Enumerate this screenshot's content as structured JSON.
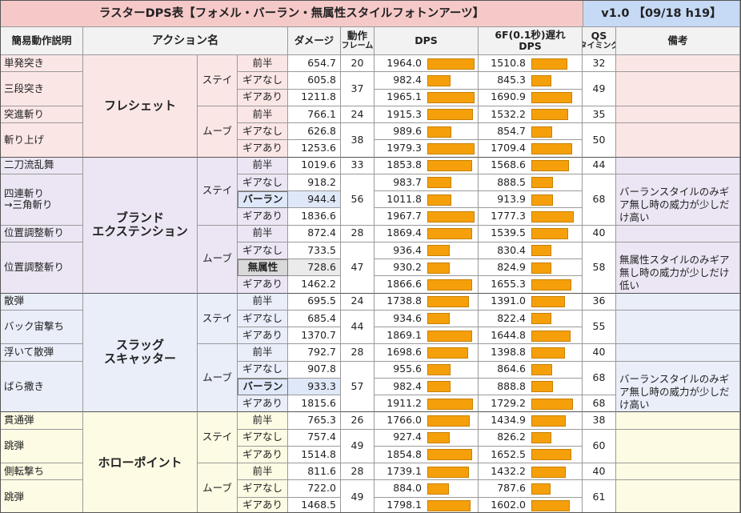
{
  "title": "ラスターDPS表【フォメル・バーラン・無属性スタイルフォトンアーツ】",
  "version": "v1.0 【09/18 h19】",
  "headers": {
    "simple": "簡易動作説明",
    "action": "アクション名",
    "damage": "ダメージ",
    "frames_line1": "動作",
    "frames_line2": "フレーム",
    "dps": "DPS",
    "dps6f_line1": "6F(0.1秒)遅れ",
    "dps6f_line2": "DPS",
    "qs_line1": "QS",
    "qs_line2": "タイミング",
    "notes": "備考"
  },
  "colors": {
    "fleche": "#fbe6e6",
    "brand": "#ece6f4",
    "slug": "#e9eef9",
    "hollow": "#fdfbe4",
    "bar": "#f5a00a"
  },
  "styles": {
    "stay": "ステイ",
    "move": "ムーブ"
  },
  "groups": [
    {
      "name_line1": "フレシェット",
      "name_line2": "",
      "rows": [
        {
          "desc": "単発突き",
          "style": "stay",
          "sub": "前半",
          "damage": "654.7",
          "frames": "20",
          "dps": 1964.0,
          "dps_text": "1964.0",
          "dps6": 1510.8,
          "dps6_text": "1510.8",
          "qs": "32"
        },
        {
          "desc": "三段突き",
          "sub": "ギアなし",
          "damage": "605.8",
          "frames": "37",
          "dps": 982.4,
          "dps_text": "982.4",
          "dps6": 845.3,
          "dps6_text": "845.3",
          "qs": "49"
        },
        {
          "sub": "ギアあり",
          "damage": "1211.8",
          "dps": 1965.1,
          "dps_text": "1965.1",
          "dps6": 1690.9,
          "dps6_text": "1690.9"
        },
        {
          "desc": "突進斬り",
          "style": "move",
          "sub": "前半",
          "damage": "766.1",
          "frames": "24",
          "dps": 1915.3,
          "dps_text": "1915.3",
          "dps6": 1532.2,
          "dps6_text": "1532.2",
          "qs": "35"
        },
        {
          "desc": "斬り上げ",
          "sub": "ギアなし",
          "damage": "626.8",
          "frames": "38",
          "dps": 989.6,
          "dps_text": "989.6",
          "dps6": 854.7,
          "dps6_text": "854.7",
          "qs": "50"
        },
        {
          "sub": "ギアあり",
          "damage": "1253.6",
          "dps": 1979.3,
          "dps_text": "1979.3",
          "dps6": 1709.4,
          "dps6_text": "1709.4"
        }
      ]
    },
    {
      "name_line1": "ブランド",
      "name_line2": "エクステンション",
      "rows": [
        {
          "desc": "二刀流乱舞",
          "style": "stay",
          "sub": "前半",
          "damage": "1019.6",
          "frames": "33",
          "dps": 1853.8,
          "dps_text": "1853.8",
          "dps6": 1568.6,
          "dps6_text": "1568.6",
          "qs": "44"
        },
        {
          "desc": "四連斬り",
          "desc2": "→三角斬り",
          "sub": "ギアなし",
          "damage": "918.2",
          "frames": "56",
          "dps": 983.7,
          "dps_text": "983.7",
          "dps6": 888.5,
          "dps6_text": "888.5",
          "qs": "68",
          "note": "バーランスタイルのみギア無し時の威力が少しだけ高い"
        },
        {
          "sub": "バーラン",
          "subtype": "baran",
          "damage": "944.4",
          "dps": 1011.8,
          "dps_text": "1011.8",
          "dps6": 913.9,
          "dps6_text": "913.9"
        },
        {
          "sub": "ギアあり",
          "damage": "1836.6",
          "dps": 1967.7,
          "dps_text": "1967.7",
          "dps6": 1777.3,
          "dps6_text": "1777.3"
        },
        {
          "desc": "位置調整斬り",
          "style": "move",
          "sub": "前半",
          "damage": "872.4",
          "frames": "28",
          "dps": 1869.4,
          "dps_text": "1869.4",
          "dps6": 1539.5,
          "dps6_text": "1539.5",
          "qs": "40"
        },
        {
          "desc": "位置調整斬り",
          "sub": "ギアなし",
          "damage": "733.5",
          "frames": "47",
          "dps": 936.4,
          "dps_text": "936.4",
          "dps6": 830.4,
          "dps6_text": "830.4",
          "qs": "58",
          "note": "無属性スタイルのみギア無し時の威力が少しだけ低い"
        },
        {
          "sub": "無属性",
          "subtype": "neutral",
          "damage": "728.6",
          "dps": 930.2,
          "dps_text": "930.2",
          "dps6": 824.9,
          "dps6_text": "824.9"
        },
        {
          "sub": "ギアあり",
          "damage": "1462.2",
          "dps": 1866.6,
          "dps_text": "1866.6",
          "dps6": 1655.3,
          "dps6_text": "1655.3"
        }
      ]
    },
    {
      "name_line1": "スラッグ",
      "name_line2": "スキャッター",
      "rows": [
        {
          "desc": "散弾",
          "style": "stay",
          "sub": "前半",
          "damage": "695.5",
          "frames": "24",
          "dps": 1738.8,
          "dps_text": "1738.8",
          "dps6": 1391.0,
          "dps6_text": "1391.0",
          "qs": "36"
        },
        {
          "desc": "バック宙撃ち",
          "sub": "ギアなし",
          "damage": "685.4",
          "frames": "44",
          "dps": 934.6,
          "dps_text": "934.6",
          "dps6": 822.4,
          "dps6_text": "822.4",
          "qs": "55"
        },
        {
          "sub": "ギアあり",
          "damage": "1370.7",
          "dps": 1869.1,
          "dps_text": "1869.1",
          "dps6": 1644.8,
          "dps6_text": "1644.8"
        },
        {
          "desc": "浮いて散弾",
          "style": "move",
          "sub": "前半",
          "damage": "792.7",
          "frames": "28",
          "dps": 1698.6,
          "dps_text": "1698.6",
          "dps6": 1398.8,
          "dps6_text": "1398.8",
          "qs": "40"
        },
        {
          "desc": "ばら撒き",
          "sub": "ギアなし",
          "damage": "907.8",
          "frames": "57",
          "dps": 955.6,
          "dps_text": "955.6",
          "dps6": 864.6,
          "dps6_text": "864.6",
          "qs": "68",
          "note": "バーランスタイルのみギア無し時の威力が少しだけ高い"
        },
        {
          "sub": "バーラン",
          "subtype": "baran",
          "damage": "933.3",
          "dps": 982.4,
          "dps_text": "982.4",
          "dps6": 888.8,
          "dps6_text": "888.8"
        },
        {
          "sub": "ギアあり",
          "damage": "1815.6",
          "dps": 1911.2,
          "dps_text": "1911.2",
          "dps6": 1729.2,
          "dps6_text": "1729.2",
          "qs": "68"
        }
      ]
    },
    {
      "name_line1": "ホローポイント",
      "name_line2": "",
      "rows": [
        {
          "desc": "貫通弾",
          "style": "stay",
          "sub": "前半",
          "damage": "765.3",
          "frames": "26",
          "dps": 1766.0,
          "dps_text": "1766.0",
          "dps6": 1434.9,
          "dps6_text": "1434.9",
          "qs": "38"
        },
        {
          "desc": "跳弾",
          "sub": "ギアなし",
          "damage": "757.4",
          "frames": "49",
          "dps": 927.4,
          "dps_text": "927.4",
          "dps6": 826.2,
          "dps6_text": "826.2",
          "qs": "60"
        },
        {
          "sub": "ギアあり",
          "damage": "1514.8",
          "dps": 1854.8,
          "dps_text": "1854.8",
          "dps6": 1652.5,
          "dps6_text": "1652.5"
        },
        {
          "desc": "側転撃ち",
          "style": "move",
          "sub": "前半",
          "damage": "811.6",
          "frames": "28",
          "dps": 1739.1,
          "dps_text": "1739.1",
          "dps6": 1432.2,
          "dps6_text": "1432.2",
          "qs": "40"
        },
        {
          "desc": "跳弾",
          "sub": "ギアなし",
          "damage": "722.0",
          "frames": "49",
          "dps": 884.0,
          "dps_text": "884.0",
          "dps6": 787.6,
          "dps6_text": "787.6",
          "qs": "61"
        },
        {
          "sub": "ギアあり",
          "damage": "1468.5",
          "dps": 1798.1,
          "dps_text": "1798.1",
          "dps6": 1602.0,
          "dps6_text": "1602.0"
        }
      ]
    }
  ]
}
